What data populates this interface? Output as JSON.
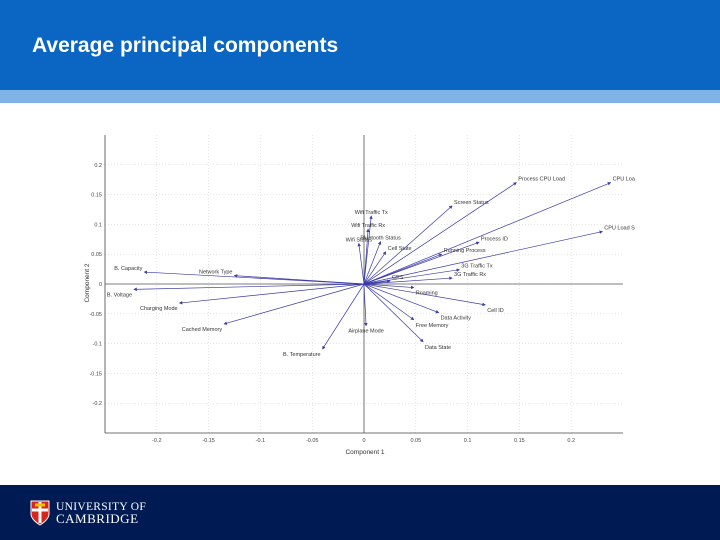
{
  "slide": {
    "title": "Average principal components",
    "colors": {
      "header": "#0a66c2",
      "band": "#7fb2e5",
      "footer": "#001b54",
      "vector": "#3a3aa8",
      "axis": "#444444",
      "grid": "#cccccc"
    }
  },
  "footer": {
    "logo_line1": "UNIVERSITY OF",
    "logo_line2": "CAMBRIDGE",
    "crest_icon": "cambridge-crest-icon"
  },
  "chart_data": {
    "type": "scatter",
    "subtype": "biplot-vectors",
    "xlabel": "Component 1",
    "ylabel": "Component 2",
    "xlim": [
      -0.25,
      0.25
    ],
    "ylim": [
      -0.25,
      0.25
    ],
    "xticks": [
      -0.2,
      -0.15,
      -0.1,
      -0.05,
      0,
      0.05,
      0.1,
      0.15,
      0.2
    ],
    "xtick_labels": [
      "-0.2",
      "-0.15",
      "-0.1",
      "-0.05",
      "0",
      "0.05",
      "0.1",
      "0.15",
      "0.2"
    ],
    "yticks": [
      -0.2,
      -0.15,
      -0.1,
      -0.05,
      0,
      0.05,
      0.1,
      0.15,
      0.2
    ],
    "ytick_labels": [
      "-0.2",
      "-0.15",
      "-0.1",
      "-0.05",
      "0",
      "0.05",
      "0.1",
      "0.15",
      "0.2"
    ],
    "grid": true,
    "vectors": [
      {
        "label": "CPU Load",
        "x": 0.238,
        "y": 0.17
      },
      {
        "label": "Process CPU Load",
        "x": 0.147,
        "y": 0.17
      },
      {
        "label": "Screen Status",
        "x": 0.085,
        "y": 0.131
      },
      {
        "label": "Wifi Traffic Tx",
        "x": 0.007,
        "y": 0.114
      },
      {
        "label": "Wifi Traffic Rx",
        "x": 0.004,
        "y": 0.092
      },
      {
        "label": "CPU Load System",
        "x": 0.23,
        "y": 0.088
      },
      {
        "label": "Bluetooth Status",
        "x": 0.016,
        "y": 0.071
      },
      {
        "label": "Wifi Status",
        "x": -0.005,
        "y": 0.068
      },
      {
        "label": "Process ID",
        "x": 0.111,
        "y": 0.07
      },
      {
        "label": "Cell State",
        "x": 0.021,
        "y": 0.054
      },
      {
        "label": "Running Process",
        "x": 0.075,
        "y": 0.05
      },
      {
        "label": "3G Traffic Tx",
        "x": 0.092,
        "y": 0.024
      },
      {
        "label": "3G Traffic Rx",
        "x": 0.085,
        "y": 0.01
      },
      {
        "label": "GPS",
        "x": 0.025,
        "y": 0.005
      },
      {
        "label": "Roaming",
        "x": 0.048,
        "y": -0.006
      },
      {
        "label": "B. Capacity",
        "x": -0.212,
        "y": 0.02
      },
      {
        "label": "Network Type",
        "x": -0.125,
        "y": 0.014
      },
      {
        "label": "B. Voltage",
        "x": -0.222,
        "y": -0.009
      },
      {
        "label": "Charging Mode",
        "x": -0.178,
        "y": -0.032
      },
      {
        "label": "Cell ID",
        "x": 0.117,
        "y": -0.035
      },
      {
        "label": "Data Activity",
        "x": 0.072,
        "y": -0.048
      },
      {
        "label": "Free Memory",
        "x": 0.048,
        "y": -0.06
      },
      {
        "label": "Cached Memory",
        "x": -0.135,
        "y": -0.067
      },
      {
        "label": "Airplane Mode",
        "x": 0.002,
        "y": -0.07
      },
      {
        "label": "Data State",
        "x": 0.057,
        "y": -0.097
      },
      {
        "label": "B. Temperature",
        "x": -0.04,
        "y": -0.109
      }
    ]
  }
}
